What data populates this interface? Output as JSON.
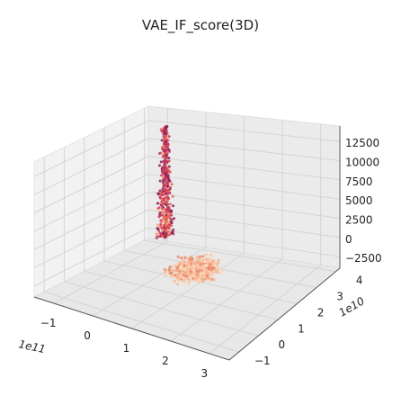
{
  "chart_data": {
    "type": "scatter",
    "projection": "3d",
    "title": "VAE_IF_score(3D)",
    "x_axis": {
      "offset_text": "1e11",
      "ticks": [
        "−1",
        "0",
        "1",
        "2",
        "3"
      ],
      "range": [
        -1.5,
        3.5
      ]
    },
    "y_axis": {
      "offset_text": "1e10",
      "ticks": [
        "−1",
        "0",
        "1",
        "2",
        "3",
        "4"
      ],
      "range": [
        -1.5,
        4.2
      ]
    },
    "z_axis": {
      "ticks": [
        "−2500",
        "0",
        "2500",
        "5000",
        "7500",
        "10000",
        "12500"
      ],
      "range": [
        -4000,
        14500
      ]
    },
    "grid": true,
    "colormap": "rose-to-peach (magma_r-like)",
    "series": [
      {
        "cluster": "vertical column",
        "x_range": [
          -1.0,
          -0.7
        ],
        "y_range": [
          3.5,
          4.0
        ],
        "z_range": [
          -2500,
          12500
        ],
        "colors": [
          "#8a1e55",
          "#c9365a",
          "#e8604f",
          "#f29a7a"
        ]
      },
      {
        "cluster": "dense floor cloud",
        "x_range": [
          0.2,
          3.0
        ],
        "y_range": [
          -0.5,
          2.0
        ],
        "z_range": [
          -2500,
          2500
        ],
        "colors": [
          "#f5b490",
          "#f8c7a4",
          "#fbd8bf",
          "#e88a6c"
        ]
      }
    ]
  }
}
